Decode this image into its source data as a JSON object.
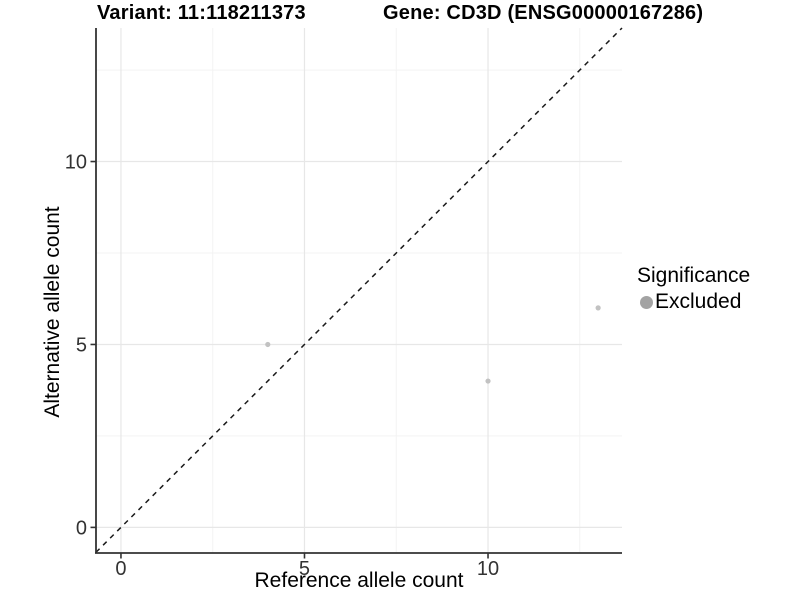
{
  "header": {
    "variant_title": "Variant: 11:118211373",
    "gene_title": "Gene: CD3D (ENSG00000167286)"
  },
  "chart_data": {
    "type": "scatter",
    "title_left": "Variant: 11:118211373",
    "title_right": "Gene: CD3D (ENSG00000167286)",
    "xlabel": "Reference allele count",
    "ylabel": "Alternative allele count",
    "xlim": [
      -0.68,
      13.65
    ],
    "ylim": [
      -0.7,
      13.65
    ],
    "x_ticks": [
      0,
      5,
      10
    ],
    "y_ticks": [
      0,
      5,
      10
    ],
    "x_minor_gridlines": [
      2.5,
      7.5,
      12.5
    ],
    "y_minor_gridlines": [
      2.5,
      7.5,
      12.5
    ],
    "grid": "major and minor, light gray on white",
    "legend_position": "right",
    "identity_line": {
      "slope": 1,
      "intercept": 0,
      "style": "dashed",
      "color": "#1a1a1a"
    },
    "series": [
      {
        "name": "Excluded",
        "color": "#c2c2c2",
        "points": [
          [
            4,
            5
          ],
          [
            10,
            4
          ],
          [
            13,
            6
          ]
        ]
      }
    ]
  },
  "legend": {
    "title": "Significance",
    "items": [
      {
        "label": "Excluded",
        "color": "#a3a3a3"
      }
    ]
  },
  "colors": {
    "background": "#ffffff",
    "grid_major": "#e7e7e7",
    "grid_minor": "#f3f3f3",
    "axis_line": "#333333",
    "tick_label": "#333333",
    "identity_line": "#1a1a1a"
  }
}
